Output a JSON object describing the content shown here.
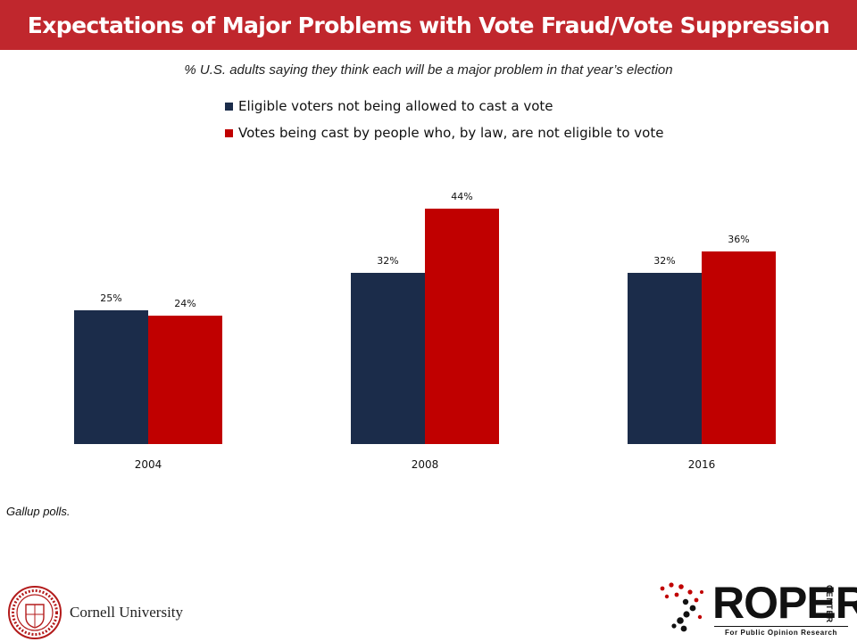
{
  "title": "Expectations of Major Problems with Vote Fraud/Vote Suppression",
  "subtitle": "% U.S. adults saying they think each will be a major problem in that year’s election",
  "source": "Gallup polls.",
  "colors": {
    "title_bar": "#c0272d",
    "series_1": "#1b2c4a",
    "series_2": "#c00000"
  },
  "chart_data": {
    "type": "bar",
    "categories": [
      "2004",
      "2008",
      "2016"
    ],
    "series": [
      {
        "name": "Eligible voters not being allowed to cast a vote",
        "values": [
          25,
          32,
          32
        ],
        "labels": [
          "25%",
          "32%",
          "32%"
        ]
      },
      {
        "name": "Votes being cast by people who, by law, are not eligible to vote",
        "values": [
          24,
          44,
          36
        ],
        "labels": [
          "24%",
          "44%",
          "36%"
        ]
      }
    ],
    "ylim": [
      0,
      50
    ],
    "legend": "top-left",
    "grid": false
  },
  "logos": {
    "cornell": {
      "name": "Cornell University",
      "seal_text": "CORNELL UNIVERSITY FOUNDED A.D. 1865"
    },
    "roper": {
      "word": "ROPER",
      "center": "CENTER",
      "tagline": "For Public Opinion Research"
    }
  }
}
